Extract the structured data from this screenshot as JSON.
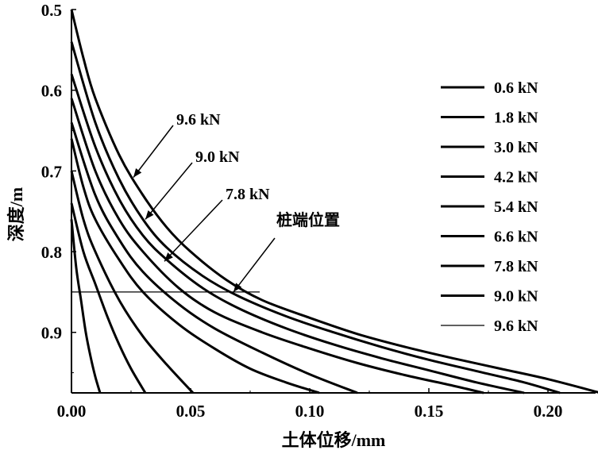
{
  "chart_data": {
    "type": "line",
    "xlabel": "土体位移/mm",
    "ylabel": "深度/m",
    "xlim": [
      0,
      0.22
    ],
    "ylim": [
      0.5,
      0.975
    ],
    "y_inverted": true,
    "x_ticks": [
      "0.00",
      "0.05",
      "0.10",
      "0.15",
      "0.20"
    ],
    "y_ticks": [
      "0.5",
      "0.6",
      "0.7",
      "0.8",
      "0.9"
    ],
    "legend_position": "right",
    "series": [
      {
        "name": "0.6 kN",
        "points": [
          [
            0,
            0.76
          ],
          [
            0.002,
            0.82
          ],
          [
            0.004,
            0.86
          ],
          [
            0.006,
            0.9
          ],
          [
            0.008,
            0.93
          ],
          [
            0.01,
            0.955
          ],
          [
            0.012,
            0.975
          ]
        ]
      },
      {
        "name": "1.8 kN",
        "points": [
          [
            0,
            0.74
          ],
          [
            0.005,
            0.8
          ],
          [
            0.01,
            0.84
          ],
          [
            0.015,
            0.88
          ],
          [
            0.02,
            0.915
          ],
          [
            0.025,
            0.945
          ],
          [
            0.031,
            0.975
          ]
        ]
      },
      {
        "name": "3.0 kN",
        "points": [
          [
            0,
            0.7
          ],
          [
            0.005,
            0.76
          ],
          [
            0.01,
            0.8
          ],
          [
            0.02,
            0.86
          ],
          [
            0.03,
            0.905
          ],
          [
            0.04,
            0.94
          ],
          [
            0.051,
            0.975
          ]
        ]
      },
      {
        "name": "4.2 kN",
        "points": [
          [
            0,
            0.66
          ],
          [
            0.005,
            0.72
          ],
          [
            0.01,
            0.76
          ],
          [
            0.02,
            0.81
          ],
          [
            0.03,
            0.85
          ],
          [
            0.045,
            0.89
          ],
          [
            0.06,
            0.92
          ],
          [
            0.075,
            0.945
          ],
          [
            0.09,
            0.962
          ],
          [
            0.104,
            0.975
          ]
        ]
      },
      {
        "name": "5.4 kN",
        "points": [
          [
            0,
            0.64
          ],
          [
            0.01,
            0.73
          ],
          [
            0.02,
            0.785
          ],
          [
            0.03,
            0.825
          ],
          [
            0.045,
            0.865
          ],
          [
            0.06,
            0.895
          ],
          [
            0.08,
            0.925
          ],
          [
            0.1,
            0.952
          ],
          [
            0.12,
            0.975
          ]
        ]
      },
      {
        "name": "6.6 kN",
        "points": [
          [
            0,
            0.61
          ],
          [
            0.01,
            0.7
          ],
          [
            0.02,
            0.76
          ],
          [
            0.03,
            0.8
          ],
          [
            0.045,
            0.845
          ],
          [
            0.06,
            0.875
          ],
          [
            0.08,
            0.9
          ],
          [
            0.1,
            0.92
          ],
          [
            0.12,
            0.938
          ],
          [
            0.14,
            0.953
          ],
          [
            0.16,
            0.966
          ],
          [
            0.173,
            0.975
          ]
        ]
      },
      {
        "name": "7.8 kN",
        "points": [
          [
            0,
            0.58
          ],
          [
            0.01,
            0.67
          ],
          [
            0.02,
            0.735
          ],
          [
            0.03,
            0.78
          ],
          [
            0.04,
            0.81
          ],
          [
            0.055,
            0.845
          ],
          [
            0.07,
            0.87
          ],
          [
            0.09,
            0.895
          ],
          [
            0.11,
            0.915
          ],
          [
            0.13,
            0.932
          ],
          [
            0.15,
            0.947
          ],
          [
            0.17,
            0.962
          ],
          [
            0.19,
            0.975
          ]
        ]
      },
      {
        "name": "9.0 kN",
        "points": [
          [
            0,
            0.54
          ],
          [
            0.01,
            0.64
          ],
          [
            0.02,
            0.71
          ],
          [
            0.03,
            0.76
          ],
          [
            0.04,
            0.795
          ],
          [
            0.055,
            0.83
          ],
          [
            0.07,
            0.855
          ],
          [
            0.09,
            0.88
          ],
          [
            0.11,
            0.9
          ],
          [
            0.13,
            0.918
          ],
          [
            0.15,
            0.934
          ],
          [
            0.17,
            0.948
          ],
          [
            0.19,
            0.962
          ],
          [
            0.205,
            0.975
          ]
        ]
      },
      {
        "name": "9.6 kN",
        "points": [
          [
            0,
            0.5
          ],
          [
            0.005,
            0.56
          ],
          [
            0.01,
            0.61
          ],
          [
            0.02,
            0.68
          ],
          [
            0.03,
            0.73
          ],
          [
            0.04,
            0.77
          ],
          [
            0.05,
            0.8
          ],
          [
            0.065,
            0.835
          ],
          [
            0.08,
            0.86
          ],
          [
            0.1,
            0.882
          ],
          [
            0.12,
            0.902
          ],
          [
            0.14,
            0.918
          ],
          [
            0.16,
            0.932
          ],
          [
            0.18,
            0.945
          ],
          [
            0.2,
            0.958
          ],
          [
            0.222,
            0.975
          ]
        ]
      }
    ],
    "pile_tip": {
      "label": "桩端位置",
      "depth": 0.85,
      "x_end": 0.079
    },
    "annotations": [
      {
        "text": "9.6 kN",
        "target": [
          0.026,
          0.708
        ]
      },
      {
        "text": "9.0 kN",
        "target": [
          0.031,
          0.76
        ]
      },
      {
        "text": "7.8 kN",
        "target": [
          0.039,
          0.812
        ]
      },
      {
        "text": "桩端位置",
        "target": [
          0.068,
          0.85
        ]
      }
    ]
  }
}
